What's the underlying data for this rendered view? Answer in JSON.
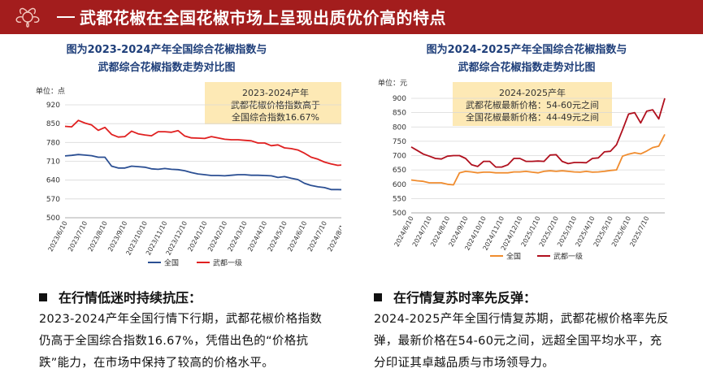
{
  "header": {
    "title": "武都花椒在全国花椒市场上呈现出质优价高的特点"
  },
  "left": {
    "title_line1": "图为2023-2024产年全国综合花椒指数与",
    "title_line2": "武都综合花椒指数走势对比图",
    "annotation": [
      "2023-2024产年",
      "武都花椒价格指数高于",
      "全国综合指数16.67%"
    ]
  },
  "right": {
    "title_line1": "图为2024-2025产年全国综合花椒指数与",
    "title_line2": "武都综合花椒指数走势对比图",
    "annotation": [
      "2024-2025产年",
      "武都花椒最新价格：54-60元之间",
      "全国花椒最新价格：44-49元之间"
    ]
  },
  "colors": {
    "header": "#a31d1d",
    "national_left": "#2b4f93",
    "wudu_left": "#e02020",
    "national_right": "#f08c2e",
    "wudu_right": "#b0101e",
    "annotation_bg": "#fde9b5"
  },
  "chart_data": [
    {
      "type": "line",
      "unit_label": "单位：点",
      "ylim": [
        500,
        920
      ],
      "yticks": [
        500,
        570,
        640,
        710,
        780,
        850,
        920
      ],
      "xticks": [
        "2023/6/10",
        "2023/7/10",
        "2023/8/10",
        "2023/9/10",
        "2023/10/10",
        "2023/11/10",
        "2023/12/10",
        "2024/1/10",
        "2024/2/10",
        "2024/3/10",
        "2024/4/10",
        "2024/5/10",
        "2024/6/10",
        "2024/7/10",
        "2024/8/10"
      ],
      "x": [
        "2023/6/10",
        "2023/6/20",
        "2023/6/30",
        "2023/7/10",
        "2023/7/20",
        "2023/7/30",
        "2023/8/10",
        "2023/8/20",
        "2023/8/30",
        "2023/9/10",
        "2023/9/20",
        "2023/9/30",
        "2023/10/10",
        "2023/10/20",
        "2023/10/30",
        "2023/11/10",
        "2023/11/20",
        "2023/11/30",
        "2023/12/10",
        "2023/12/20",
        "2023/12/30",
        "2024/1/10",
        "2024/1/20",
        "2024/1/30",
        "2024/2/10",
        "2024/2/20",
        "2024/2/28",
        "2024/3/10",
        "2024/3/20",
        "2024/3/30",
        "2024/4/10",
        "2024/4/20",
        "2024/4/30",
        "2024/5/10",
        "2024/5/20",
        "2024/5/30",
        "2024/6/10",
        "2024/6/20",
        "2024/6/30",
        "2024/7/10",
        "2024/7/20",
        "2024/7/30",
        "2024/8/10",
        "2024/8/20"
      ],
      "series": [
        {
          "name": "全国",
          "color": "#2b4f93",
          "values": [
            730,
            732,
            735,
            733,
            731,
            725,
            725,
            692,
            685,
            685,
            692,
            690,
            688,
            682,
            680,
            683,
            680,
            679,
            675,
            668,
            663,
            660,
            657,
            657,
            656,
            658,
            660,
            660,
            658,
            658,
            657,
            656,
            650,
            653,
            647,
            642,
            628,
            620,
            615,
            612,
            605,
            605,
            604,
            600
          ]
        },
        {
          "name": "武都一级",
          "color": "#e02020",
          "values": [
            840,
            838,
            862,
            852,
            845,
            825,
            836,
            810,
            800,
            802,
            822,
            812,
            808,
            805,
            820,
            820,
            818,
            824,
            804,
            797,
            796,
            795,
            802,
            797,
            792,
            790,
            790,
            788,
            786,
            778,
            778,
            768,
            771,
            760,
            757,
            752,
            740,
            725,
            718,
            707,
            700,
            695,
            697,
            702
          ]
        }
      ]
    },
    {
      "type": "line",
      "unit_label": "单位：元",
      "ylim": [
        500,
        900
      ],
      "yticks": [
        500,
        550,
        600,
        650,
        700,
        750,
        800,
        850,
        900
      ],
      "xticks": [
        "2024/6/10",
        "2024/7/10",
        "2024/8/10",
        "2024/9/10",
        "2024/10/10",
        "2024/11/10",
        "2024/12/10",
        "2025/1/10",
        "2025/2/10",
        "2025/3/10",
        "2025/4/10",
        "2025/5/10",
        "2025/6/10",
        "2025/7/10"
      ],
      "x": [
        "2024/6/10",
        "2024/6/20",
        "2024/6/30",
        "2024/7/10",
        "2024/7/20",
        "2024/7/30",
        "2024/8/10",
        "2024/8/20",
        "2024/8/30",
        "2024/9/10",
        "2024/9/20",
        "2024/9/30",
        "2024/10/10",
        "2024/10/20",
        "2024/10/30",
        "2024/11/10",
        "2024/11/20",
        "2024/11/30",
        "2024/12/10",
        "2024/12/20",
        "2024/12/30",
        "2025/1/10",
        "2025/1/20",
        "2025/1/30",
        "2025/2/10",
        "2025/2/20",
        "2025/2/28",
        "2025/3/10",
        "2025/3/20",
        "2025/3/30",
        "2025/4/10",
        "2025/4/20",
        "2025/4/30",
        "2025/5/10",
        "2025/5/20",
        "2025/5/30",
        "2025/6/10",
        "2025/6/20",
        "2025/6/30",
        "2025/7/10",
        "2025/7/20",
        "2025/7/30",
        "2025/8/10"
      ],
      "series": [
        {
          "name": "全国",
          "color": "#f08c2e",
          "values": [
            615,
            612,
            610,
            605,
            605,
            605,
            600,
            598,
            640,
            645,
            643,
            640,
            642,
            642,
            640,
            640,
            640,
            643,
            643,
            645,
            642,
            640,
            645,
            647,
            645,
            647,
            645,
            643,
            642,
            645,
            642,
            643,
            645,
            648,
            650,
            698,
            705,
            710,
            706,
            716,
            728,
            733,
            774
          ]
        },
        {
          "name": "武都一级",
          "color": "#b0101e",
          "values": [
            730,
            718,
            705,
            698,
            690,
            688,
            698,
            700,
            700,
            690,
            668,
            662,
            680,
            680,
            660,
            660,
            668,
            690,
            690,
            680,
            680,
            681,
            680,
            702,
            703,
            680,
            672,
            676,
            676,
            675,
            690,
            692,
            713,
            715,
            738,
            790,
            845,
            850,
            814,
            855,
            860,
            828,
            900
          ]
        }
      ]
    }
  ],
  "bullets": [
    {
      "heading": "在行情低迷时持续抗压：",
      "lines": [
        "2023-2024产年全国行情下行期，武都花椒价格指数",
        "仍高于全国综合指数16.67%，凭借出色的“价格抗",
        "跌”能力，在市场中保持了较高的价格水平。"
      ]
    },
    {
      "heading": "在行情复苏时率先反弹：",
      "lines": [
        "2024-2025产年全国行情复苏期，武都花椒价格率先反",
        "弹，最新价格在54-60元之间，远超全国平均水平，充",
        "分印证其卓越品质与市场领导力。"
      ]
    }
  ]
}
